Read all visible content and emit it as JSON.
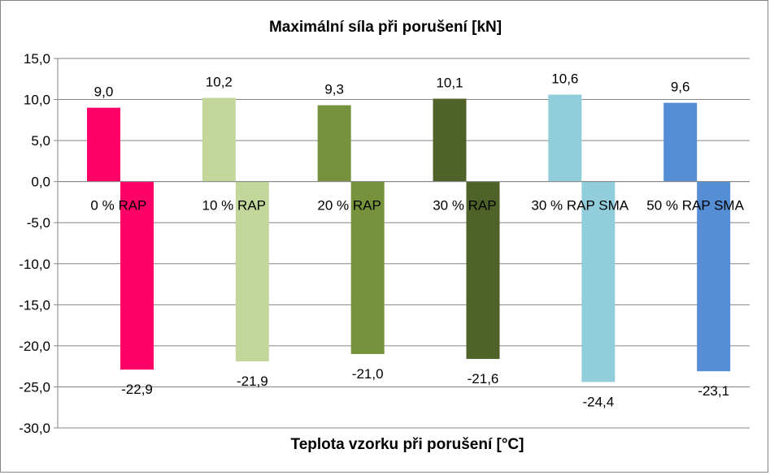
{
  "chart_data": {
    "type": "bar",
    "title": "Maximální síla při porušení [kN]",
    "xlabel": "Teplota vzorku při porušení [°C]",
    "ylabel": "",
    "ylim": [
      -30,
      15
    ],
    "ytick_step": 5,
    "ytick_labels": [
      "15,0",
      "10,0",
      "5,0",
      "0,0",
      "-5,0",
      "-10,0",
      "-15,0",
      "-20,0",
      "-25,0",
      "-30,0"
    ],
    "grid": true,
    "legend": "none",
    "categories": [
      "0 % RAP",
      "10 % RAP",
      "20 % RAP",
      "30 % RAP",
      "30 % RAP SMA",
      "50 % RAP SMA"
    ],
    "category_colors": [
      "#ff0066",
      "#c4d79b",
      "#76923c",
      "#4f6228",
      "#92cddc",
      "#558ed5"
    ],
    "series": [
      {
        "values": [
          9.0,
          10.2,
          9.3,
          10.1,
          10.6,
          9.6
        ],
        "labels": [
          "9,0",
          "10,2",
          "9,3",
          "10,1",
          "10,6",
          "9,6"
        ]
      },
      {
        "values": [
          -22.9,
          -21.9,
          -21.0,
          -21.6,
          -24.4,
          -23.1
        ],
        "labels": [
          "-22,9",
          "-21,9",
          "-21,0",
          "-21,6",
          "-24,4",
          "-23,1"
        ]
      }
    ]
  }
}
